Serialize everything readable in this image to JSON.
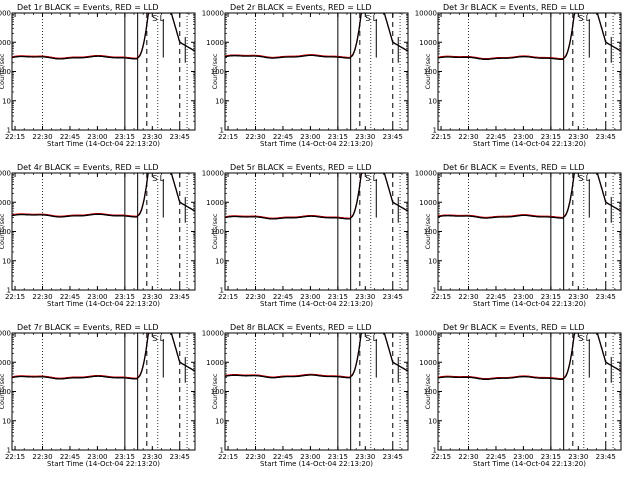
{
  "colors": {
    "events": "#000000",
    "lld": "#cc0000",
    "background": "#ffffff"
  },
  "shared": {
    "xlabel": "Start Time (14-Oct-04 22:13:20)",
    "ylabel": "Counts/sec",
    "x_tick_labels": [
      "22:15",
      "22:30",
      "22:45",
      "23:00",
      "23:15",
      "23:30",
      "23:45"
    ],
    "y_tick_labels": [
      "1",
      "10",
      "100",
      "1000",
      "10000"
    ],
    "annotation": "S",
    "annotation2": "L"
  },
  "chart_data": [
    {
      "type": "line",
      "title": "Det 1r BLACK = Events, RED = LLD",
      "xlabel": "Start Time (14-Oct-04 22:13:20)",
      "ylabel": "Counts/sec",
      "xlim": [
        "22:13:20",
        "23:53:20"
      ],
      "ylim": [
        1,
        10000
      ],
      "yscale": "log",
      "x_ticks": [
        "22:15",
        "22:30",
        "22:45",
        "23:00",
        "23:15",
        "23:30",
        "23:45"
      ],
      "baseline_counts": 300,
      "series": [
        {
          "values": [
            310,
            330,
            300,
            290,
            300,
            320,
            330,
            300,
            290,
            300,
            310,
            600,
            10000,
            600,
            10000,
            400
          ]
        },
        {
          "values": [
            320,
            340,
            310,
            300,
            310,
            330,
            340,
            310,
            300,
            310,
            320,
            650,
            10000,
            650,
            10000,
            420
          ]
        }
      ],
      "markers": {
        "dotted": [
          "22:30",
          "23:33",
          "23:49"
        ],
        "solid": [
          "23:15",
          "23:22"
        ],
        "dashed": [
          "23:27",
          "23:45"
        ]
      }
    },
    {
      "type": "line",
      "title": "Det 2r BLACK = Events, RED = LLD",
      "xlabel": "Start Time (14-Oct-04 22:13:20)",
      "ylabel": "Counts/sec",
      "xlim": [
        "22:13:20",
        "23:53:20"
      ],
      "ylim": [
        1,
        10000
      ],
      "yscale": "log",
      "x_ticks": [
        "22:15",
        "22:30",
        "22:45",
        "23:00",
        "23:15",
        "23:30",
        "23:45"
      ],
      "baseline_counts": 320,
      "series": [
        {
          "values": [
            330,
            350,
            320,
            310,
            320,
            340,
            350,
            320,
            310,
            320,
            330,
            650,
            10000,
            650,
            10000,
            420
          ]
        },
        {
          "values": [
            340,
            360,
            330,
            320,
            330,
            350,
            360,
            330,
            320,
            330,
            340,
            700,
            10000,
            700,
            10000,
            440
          ]
        }
      ],
      "markers": {
        "dotted": [
          "22:30",
          "23:33",
          "23:49"
        ],
        "solid": [
          "23:15",
          "23:22"
        ],
        "dashed": [
          "23:27",
          "23:45"
        ]
      }
    },
    {
      "type": "line",
      "title": "Det 3r BLACK = Events, RED = LLD",
      "xlabel": "Start Time (14-Oct-04 22:13:20)",
      "ylabel": "Counts/sec",
      "xlim": [
        "22:13:20",
        "23:53:20"
      ],
      "ylim": [
        1,
        10000
      ],
      "yscale": "log",
      "x_ticks": [
        "22:15",
        "22:30",
        "22:45",
        "23:00",
        "23:15",
        "23:30",
        "23:45"
      ],
      "baseline_counts": 290,
      "series": [
        {
          "values": [
            300,
            320,
            290,
            280,
            290,
            310,
            320,
            290,
            280,
            290,
            300,
            620,
            10000,
            620,
            10000,
            410
          ]
        },
        {
          "values": [
            310,
            330,
            300,
            290,
            300,
            320,
            330,
            300,
            290,
            300,
            310,
            660,
            10000,
            660,
            10000,
            430
          ]
        }
      ],
      "markers": {
        "dotted": [
          "22:30",
          "23:33",
          "23:49"
        ],
        "solid": [
          "23:15",
          "23:22"
        ],
        "dashed": [
          "23:27",
          "23:45"
        ]
      }
    },
    {
      "type": "line",
      "title": "Det 4r BLACK = Events, RED = LLD",
      "xlabel": "Start Time (14-Oct-04 22:13:20)",
      "ylabel": "Counts/sec",
      "xlim": [
        "22:13:20",
        "23:53:20"
      ],
      "ylim": [
        1,
        10000
      ],
      "yscale": "log",
      "x_ticks": [
        "22:15",
        "22:30",
        "22:45",
        "23:00",
        "23:15",
        "23:30",
        "23:45"
      ],
      "baseline_counts": 350,
      "series": [
        {
          "values": [
            360,
            380,
            350,
            340,
            350,
            370,
            380,
            350,
            340,
            350,
            360,
            700,
            10000,
            700,
            10000,
            450
          ]
        },
        {
          "values": [
            370,
            390,
            360,
            350,
            360,
            380,
            390,
            360,
            350,
            360,
            370,
            750,
            10000,
            750,
            10000,
            470
          ]
        }
      ],
      "markers": {
        "dotted": [
          "22:30",
          "23:33",
          "23:49"
        ],
        "solid": [
          "23:15",
          "23:22"
        ],
        "dashed": [
          "23:27",
          "23:45"
        ]
      }
    },
    {
      "type": "line",
      "title": "Det 5r BLACK = Events, RED = LLD",
      "xlabel": "Start Time (14-Oct-04 22:13:20)",
      "ylabel": "Counts/sec",
      "xlim": [
        "22:13:20",
        "23:53:20"
      ],
      "ylim": [
        1,
        10000
      ],
      "yscale": "log",
      "x_ticks": [
        "22:15",
        "22:30",
        "22:45",
        "23:00",
        "23:15",
        "23:30",
        "23:45"
      ],
      "baseline_counts": 300,
      "series": [
        {
          "values": [
            310,
            330,
            300,
            290,
            300,
            320,
            330,
            300,
            290,
            300,
            310,
            600,
            10000,
            600,
            10000,
            400
          ]
        },
        {
          "values": [
            320,
            340,
            310,
            300,
            310,
            330,
            340,
            310,
            300,
            310,
            320,
            650,
            10000,
            650,
            10000,
            420
          ]
        }
      ],
      "markers": {
        "dotted": [
          "22:30",
          "23:33",
          "23:49"
        ],
        "solid": [
          "23:15",
          "23:22"
        ],
        "dashed": [
          "23:27",
          "23:45"
        ]
      }
    },
    {
      "type": "line",
      "title": "Det 6r BLACK = Events, RED = LLD",
      "xlabel": "Start Time (14-Oct-04 22:13:20)",
      "ylabel": "Counts/sec",
      "xlim": [
        "22:13:20",
        "23:53:20"
      ],
      "ylim": [
        1,
        10000
      ],
      "yscale": "log",
      "x_ticks": [
        "22:15",
        "22:30",
        "22:45",
        "23:00",
        "23:15",
        "23:30",
        "23:45"
      ],
      "baseline_counts": 320,
      "series": [
        {
          "values": [
            330,
            350,
            320,
            310,
            320,
            340,
            350,
            320,
            310,
            320,
            330,
            650,
            10000,
            650,
            10000,
            420
          ]
        },
        {
          "values": [
            340,
            360,
            330,
            320,
            330,
            350,
            360,
            330,
            320,
            330,
            340,
            700,
            10000,
            700,
            10000,
            440
          ]
        }
      ],
      "markers": {
        "dotted": [
          "22:30",
          "23:33",
          "23:49"
        ],
        "solid": [
          "23:15",
          "23:22"
        ],
        "dashed": [
          "23:27",
          "23:45"
        ]
      }
    },
    {
      "type": "line",
      "title": "Det 7r BLACK = Events, RED = LLD",
      "xlabel": "Start Time (14-Oct-04 22:13:20)",
      "ylabel": "Counts/sec",
      "xlim": [
        "22:13:20",
        "23:53:20"
      ],
      "ylim": [
        1,
        10000
      ],
      "yscale": "log",
      "x_ticks": [
        "22:15",
        "22:30",
        "22:45",
        "23:00",
        "23:15",
        "23:30",
        "23:45"
      ],
      "baseline_counts": 300,
      "series": [
        {
          "values": [
            310,
            330,
            300,
            290,
            300,
            320,
            330,
            300,
            290,
            300,
            310,
            600,
            10000,
            600,
            10000,
            400
          ]
        },
        {
          "values": [
            320,
            340,
            310,
            300,
            310,
            330,
            340,
            310,
            300,
            310,
            320,
            650,
            10000,
            650,
            10000,
            420
          ]
        }
      ],
      "markers": {
        "dotted": [
          "22:30",
          "23:33",
          "23:49"
        ],
        "solid": [
          "23:15",
          "23:22"
        ],
        "dashed": [
          "23:27",
          "23:45"
        ]
      }
    },
    {
      "type": "line",
      "title": "Det 8r BLACK = Events, RED = LLD",
      "xlabel": "Start Time (14-Oct-04 22:13:20)",
      "ylabel": "Counts/sec",
      "xlim": [
        "22:13:20",
        "23:53:20"
      ],
      "ylim": [
        1,
        10000
      ],
      "yscale": "log",
      "x_ticks": [
        "22:15",
        "22:30",
        "22:45",
        "23:00",
        "23:15",
        "23:30",
        "23:45"
      ],
      "baseline_counts": 330,
      "series": [
        {
          "values": [
            340,
            360,
            330,
            320,
            330,
            350,
            360,
            330,
            320,
            330,
            340,
            650,
            10000,
            650,
            10000,
            430
          ]
        },
        {
          "values": [
            350,
            370,
            340,
            330,
            340,
            360,
            370,
            340,
            330,
            340,
            350,
            700,
            10000,
            700,
            10000,
            450
          ]
        }
      ],
      "markers": {
        "dotted": [
          "22:30",
          "23:33",
          "23:49"
        ],
        "solid": [
          "23:15",
          "23:22"
        ],
        "dashed": [
          "23:27",
          "23:45"
        ]
      }
    },
    {
      "type": "line",
      "title": "Det 9r BLACK = Events, RED = LLD",
      "xlabel": "Start Time (14-Oct-04 22:13:20)",
      "ylabel": "Counts/sec",
      "xlim": [
        "22:13:20",
        "23:53:20"
      ],
      "ylim": [
        1,
        10000
      ],
      "yscale": "log",
      "x_ticks": [
        "22:15",
        "22:30",
        "22:45",
        "23:00",
        "23:15",
        "23:30",
        "23:45"
      ],
      "baseline_counts": 290,
      "series": [
        {
          "values": [
            300,
            320,
            290,
            280,
            290,
            310,
            320,
            290,
            280,
            290,
            300,
            620,
            10000,
            620,
            10000,
            410
          ]
        },
        {
          "values": [
            310,
            330,
            300,
            290,
            300,
            320,
            330,
            300,
            290,
            300,
            310,
            660,
            10000,
            660,
            10000,
            430
          ]
        }
      ],
      "markers": {
        "dotted": [
          "22:30",
          "23:33",
          "23:49"
        ],
        "solid": [
          "23:15",
          "23:22"
        ],
        "dashed": [
          "23:27",
          "23:45"
        ]
      }
    }
  ]
}
